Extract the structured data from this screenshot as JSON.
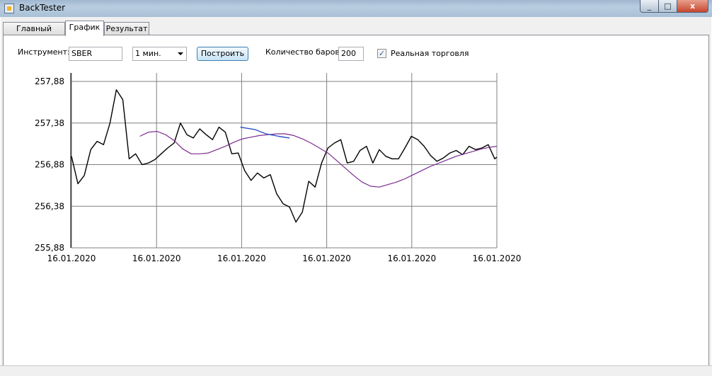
{
  "window": {
    "title": "BackTester"
  },
  "window_controls": {
    "minimize": "_",
    "maximize": "□",
    "close": "x"
  },
  "tabs": [
    {
      "label": "Главный экран"
    },
    {
      "label": "График"
    },
    {
      "label": "Результат"
    }
  ],
  "toolbar": {
    "instrument_label": "Инструмент:",
    "instrument_value": "SBER",
    "timeframe_value": "1 мин.",
    "build_button": "Построить",
    "bars_label": "Количество баров:",
    "bars_value": "200",
    "real_trading_label": "Реальная торговля",
    "real_trading_checked": "✓"
  },
  "colors": {
    "price_line": "#000000",
    "moving_average": "#7b2c8f",
    "signal_segment": "#2a4ec7",
    "grid": "#808080"
  },
  "chart_data": {
    "type": "line",
    "yticks": [
      "255,88",
      "256,38",
      "256,88",
      "257,38",
      "257,88"
    ],
    "ylim": [
      255.88,
      257.88
    ],
    "xticks": [
      "16.01.2020",
      "16.01.2020",
      "16.01.2020",
      "16.01.2020",
      "16.01.2020",
      "16.01.2020"
    ],
    "bars": 200,
    "series": [
      {
        "x": [
          0,
          3,
          6,
          9,
          12,
          15,
          18,
          21,
          24,
          27,
          30,
          33,
          36,
          39,
          42,
          45,
          48,
          51,
          54,
          57,
          60,
          63,
          66,
          69,
          72,
          75,
          78,
          81,
          84,
          87,
          90,
          93,
          96,
          99,
          102,
          105,
          108,
          111,
          114,
          117,
          120,
          123,
          126,
          129,
          132,
          135,
          138,
          141,
          144,
          147,
          150,
          153,
          156,
          159,
          162,
          165,
          168,
          171,
          174,
          177,
          180,
          183,
          186,
          189,
          192,
          195,
          198,
          199
        ],
        "values": [
          256.98,
          256.65,
          256.75,
          257.06,
          257.16,
          257.12,
          257.38,
          257.78,
          257.66,
          256.95,
          257.01,
          256.88,
          256.9,
          256.94,
          257.01,
          257.08,
          257.14,
          257.38,
          257.24,
          257.2,
          257.31,
          257.24,
          257.18,
          257.33,
          257.27,
          257.01,
          257.02,
          256.81,
          256.69,
          256.78,
          256.72,
          256.76,
          256.53,
          256.41,
          256.37,
          256.19,
          256.31,
          256.68,
          256.61,
          256.9,
          257.08,
          257.14,
          257.18,
          256.9,
          256.92,
          257.05,
          257.1,
          256.9,
          257.06,
          256.98,
          256.95,
          256.95,
          257.08,
          257.22,
          257.18,
          257.1,
          256.99,
          256.92,
          256.96,
          257.02,
          257.05,
          257.0,
          257.1,
          257.06,
          257.08,
          257.12,
          256.95,
          256.97
        ]
      },
      {
        "x": [
          32,
          36,
          40,
          44,
          48,
          52,
          56,
          60,
          64,
          68,
          72,
          76,
          80,
          84,
          88,
          92,
          96,
          100,
          104,
          108,
          112,
          116,
          120,
          124,
          128,
          132,
          136,
          140,
          144,
          148,
          152,
          156,
          160,
          164,
          168,
          172,
          176,
          180,
          184,
          188,
          192,
          196,
          199
        ],
        "values": [
          257.22,
          257.27,
          257.28,
          257.24,
          257.17,
          257.07,
          257.01,
          257.01,
          257.02,
          257.06,
          257.1,
          257.15,
          257.19,
          257.21,
          257.23,
          257.24,
          257.25,
          257.25,
          257.23,
          257.19,
          257.14,
          257.08,
          257.02,
          256.93,
          256.84,
          256.75,
          256.67,
          256.62,
          256.61,
          256.64,
          256.67,
          256.71,
          256.76,
          256.81,
          256.86,
          256.9,
          256.94,
          256.98,
          257.01,
          257.04,
          257.07,
          257.09,
          257.1
        ]
      },
      {
        "x": [
          79,
          86,
          91,
          97,
          102
        ],
        "values": [
          257.33,
          257.3,
          257.25,
          257.22,
          257.2
        ]
      }
    ]
  }
}
